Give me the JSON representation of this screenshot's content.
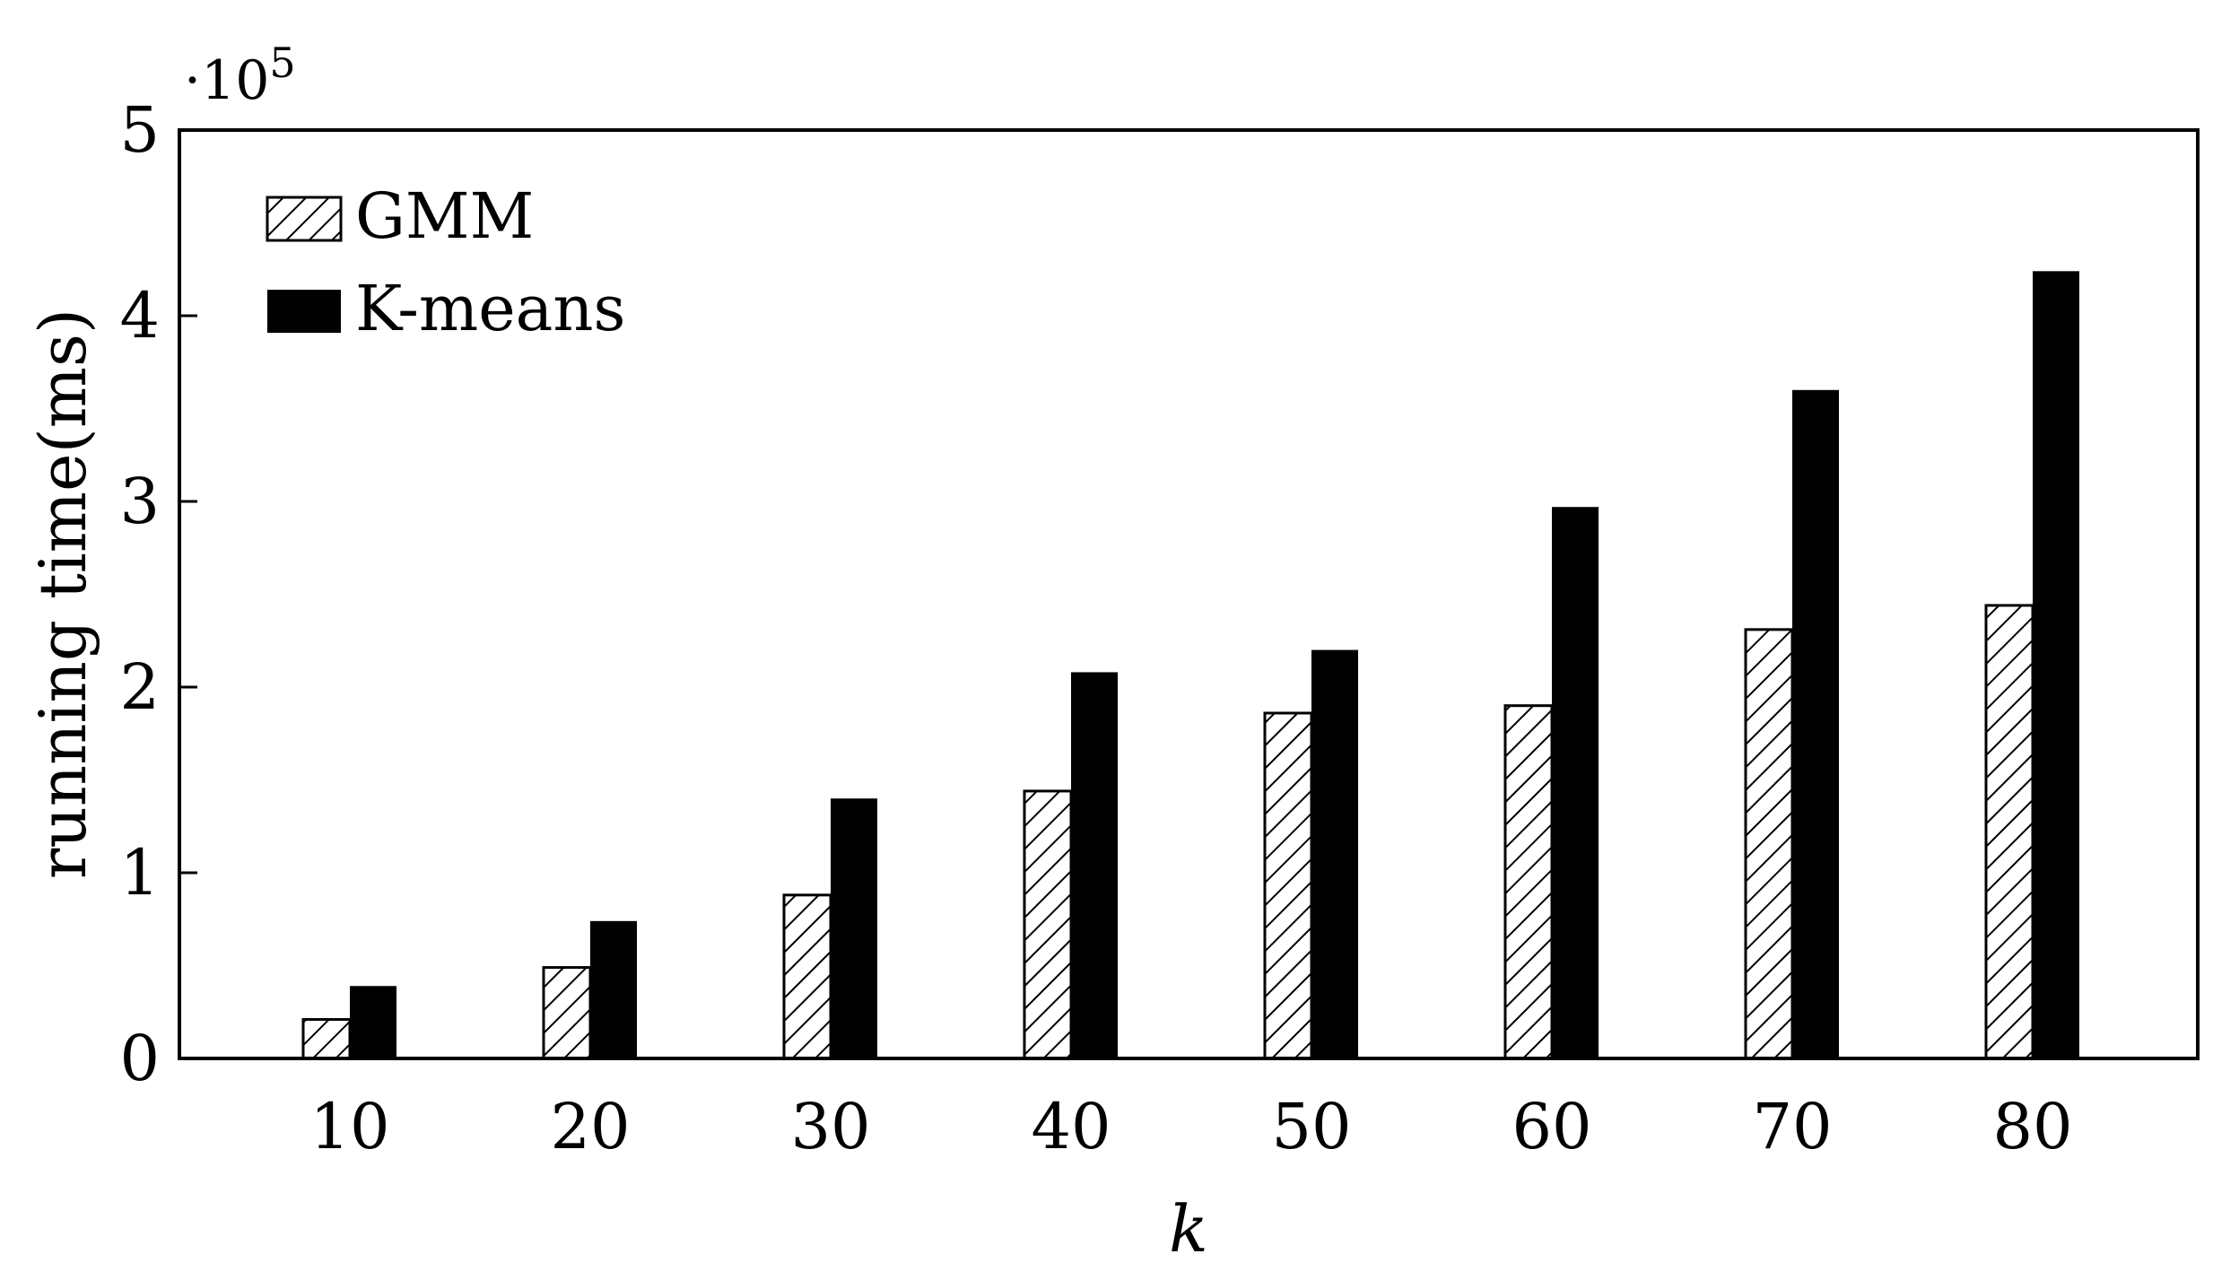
{
  "chart_data": {
    "type": "bar",
    "categories": [
      "10",
      "20",
      "30",
      "40",
      "50",
      "60",
      "70",
      "80"
    ],
    "series": [
      {
        "name": "GMM",
        "values": [
          21000,
          49000,
          88000,
          144000,
          186000,
          190000,
          231000,
          244000
        ],
        "pattern": "hatch"
      },
      {
        "name": "K-means",
        "values": [
          39000,
          74000,
          140000,
          208000,
          220000,
          297000,
          360000,
          424000
        ],
        "pattern": "solid"
      }
    ],
    "title": "",
    "xlabel": "k",
    "ylabel": "running time(ms)",
    "ylim": [
      0,
      500000
    ],
    "yticks": [
      "0",
      "1",
      "2",
      "3",
      "4",
      "5"
    ],
    "y_multiplier_label": "·10",
    "y_multiplier_exponent": "5",
    "legend_position": "top-left",
    "grid": false,
    "colors": {
      "gmm_fill": "#ffffff",
      "gmm_hatch": "#000000",
      "kmeans_fill": "#000000"
    }
  }
}
